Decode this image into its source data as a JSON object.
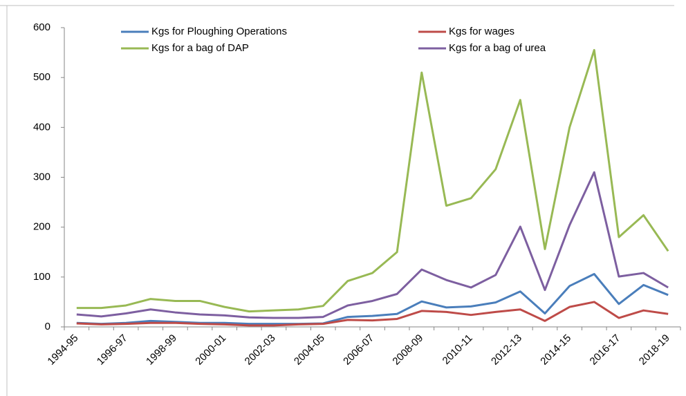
{
  "chart_data": {
    "type": "line",
    "categories": [
      "1994-95",
      null,
      "1996-97",
      null,
      "1998-99",
      null,
      "2000-01",
      null,
      "2002-03",
      null,
      "2004-05",
      null,
      "2006-07",
      null,
      "2008-09",
      null,
      "2010-11",
      null,
      "2012-13",
      null,
      "2014-15",
      null,
      "2016-17",
      null,
      "2018-19"
    ],
    "series": [
      {
        "name": "Kgs for Ploughing Operations",
        "color": "#4a7ebb",
        "values": [
          8,
          6,
          8,
          12,
          10,
          8,
          8,
          6,
          6,
          6,
          7,
          20,
          22,
          26,
          51,
          39,
          41,
          49,
          71,
          27,
          82,
          106,
          46,
          84,
          64
        ]
      },
      {
        "name": "Kgs for wages",
        "color": "#be4b48",
        "values": [
          7,
          5,
          6,
          8,
          8,
          6,
          5,
          3,
          3,
          5,
          6,
          14,
          13,
          16,
          32,
          30,
          24,
          30,
          35,
          12,
          40,
          50,
          18,
          33,
          26
        ]
      },
      {
        "name": "Kgs for a bag of DAP",
        "color": "#98b954",
        "values": [
          38,
          38,
          43,
          56,
          52,
          52,
          40,
          31,
          33,
          35,
          42,
          92,
          108,
          150,
          510,
          243,
          258,
          316,
          455,
          156,
          400,
          555,
          180,
          224,
          152
        ]
      },
      {
        "name": "Kgs for a bag of urea",
        "color": "#7d5fa0",
        "values": [
          25,
          21,
          27,
          35,
          29,
          25,
          23,
          19,
          18,
          18,
          20,
          43,
          52,
          66,
          115,
          94,
          79,
          104,
          201,
          74,
          204,
          310,
          101,
          108,
          79
        ]
      }
    ],
    "ylim": [
      0,
      600
    ],
    "yticks": [
      0,
      100,
      200,
      300,
      400,
      500,
      600
    ],
    "grid": false,
    "legend": "top"
  }
}
